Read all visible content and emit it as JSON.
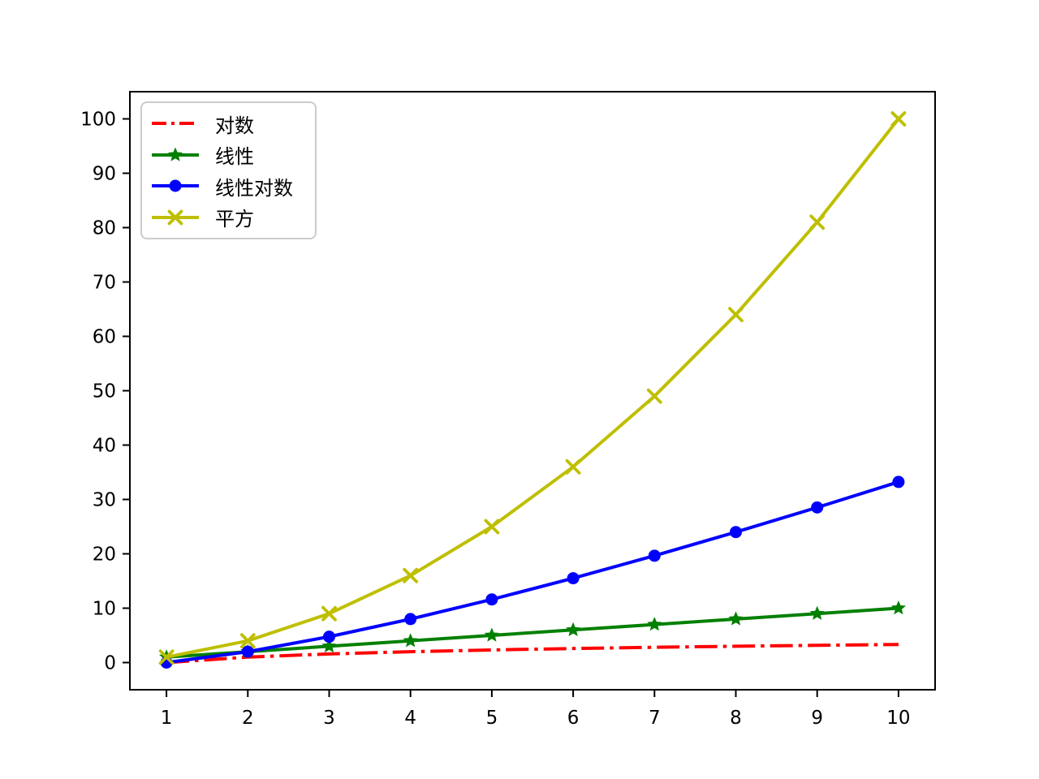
{
  "chart_data": {
    "type": "line",
    "title": "",
    "xlabel": "",
    "ylabel": "",
    "grid": false,
    "legend_position": "upper-left",
    "x": [
      1,
      2,
      3,
      4,
      5,
      6,
      7,
      8,
      9,
      10
    ],
    "xticks": [
      1,
      2,
      3,
      4,
      5,
      6,
      7,
      8,
      9,
      10
    ],
    "yticks": [
      0,
      10,
      20,
      30,
      40,
      50,
      60,
      70,
      80,
      90,
      100
    ],
    "xlim": [
      0.55,
      10.45
    ],
    "ylim": [
      -5,
      105
    ],
    "series": [
      {
        "key": "log",
        "label": "对数",
        "color": "#ff0000",
        "linestyle": "dashdot",
        "marker": "none",
        "values": [
          0,
          1,
          1.585,
          2,
          2.322,
          2.585,
          2.807,
          3,
          3.17,
          3.322
        ]
      },
      {
        "key": "linear",
        "label": "线性",
        "color": "#008000",
        "linestyle": "solid",
        "marker": "star",
        "values": [
          1,
          2,
          3,
          4,
          5,
          6,
          7,
          8,
          9,
          10
        ]
      },
      {
        "key": "linearithmic",
        "label": "线性对数",
        "color": "#0000ff",
        "linestyle": "solid",
        "marker": "circle",
        "values": [
          0,
          2,
          4.755,
          8,
          11.61,
          15.51,
          19.651,
          24,
          28.529,
          33.219
        ]
      },
      {
        "key": "square",
        "label": "平方",
        "color": "#bfbf00",
        "linestyle": "solid",
        "marker": "x",
        "values": [
          1,
          4,
          9,
          16,
          25,
          36,
          49,
          64,
          81,
          100
        ]
      }
    ],
    "axis_color": "#000000"
  }
}
